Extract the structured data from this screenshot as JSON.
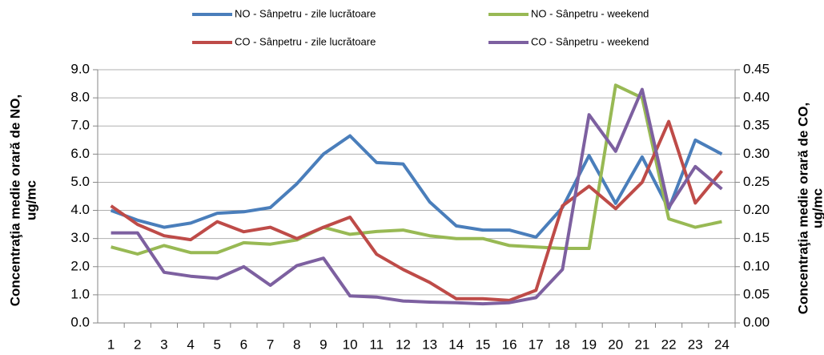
{
  "chart_data": {
    "type": "line",
    "categories": [
      "1",
      "2",
      "3",
      "4",
      "5",
      "6",
      "7",
      "8",
      "9",
      "10",
      "11",
      "12",
      "13",
      "14",
      "15",
      "16",
      "17",
      "18",
      "19",
      "20",
      "21",
      "22",
      "23",
      "24"
    ],
    "ylabel": [
      "Concentraţia medie orară de NO,",
      "ug/mc"
    ],
    "y2label": [
      "Concentraţia medie orară de CO,",
      "ug/mc"
    ],
    "ylim": [
      0,
      9
    ],
    "yticks": [
      {
        "value": 0,
        "label": "0.0"
      },
      {
        "value": 1,
        "label": "1.0"
      },
      {
        "value": 2,
        "label": "2.0"
      },
      {
        "value": 3,
        "label": "3.0"
      },
      {
        "value": 4,
        "label": "4.0"
      },
      {
        "value": 5,
        "label": "5.0"
      },
      {
        "value": 6,
        "label": "6.0"
      },
      {
        "value": 7,
        "label": "7.0"
      },
      {
        "value": 8,
        "label": "8.0"
      },
      {
        "value": 9,
        "label": "9.0"
      }
    ],
    "y2lim": [
      0,
      0.45
    ],
    "y2ticks": [
      {
        "value": 0,
        "label": "0.00"
      },
      {
        "value": 0.05,
        "label": "0.05"
      },
      {
        "value": 0.1,
        "label": "0.10"
      },
      {
        "value": 0.15,
        "label": "0.15"
      },
      {
        "value": 0.2,
        "label": "0.20"
      },
      {
        "value": 0.25,
        "label": "0.25"
      },
      {
        "value": 0.3,
        "label": "0.30"
      },
      {
        "value": 0.35,
        "label": "0.35"
      },
      {
        "value": 0.4,
        "label": "0.40"
      },
      {
        "value": 0.45,
        "label": "0.45"
      }
    ],
    "grid": true,
    "legend": "top",
    "series": [
      {
        "name": "NO - Sânpetru - zile lucrătoare",
        "color": "#4a7ebb",
        "axis": "y",
        "values": [
          4.0,
          3.65,
          3.4,
          3.55,
          3.9,
          3.95,
          4.1,
          4.95,
          6.0,
          6.65,
          5.7,
          5.65,
          4.3,
          3.45,
          3.3,
          3.3,
          3.05,
          4.1,
          5.95,
          4.25,
          5.9,
          4.05,
          6.5,
          6.0
        ]
      },
      {
        "name": "NO - Sânpetru - weekend",
        "color": "#98b954",
        "axis": "y",
        "values": [
          2.7,
          2.45,
          2.75,
          2.5,
          2.5,
          2.85,
          2.8,
          2.95,
          3.4,
          3.15,
          3.25,
          3.3,
          3.1,
          3.0,
          3.0,
          2.75,
          2.7,
          2.65,
          2.65,
          8.45,
          8.0,
          3.7,
          3.4,
          3.6
        ]
      },
      {
        "name": "CO - Sânpetru - zile lucrătoare",
        "color": "#be4b48",
        "axis": "y2",
        "values": [
          0.208,
          0.175,
          0.155,
          0.148,
          0.18,
          0.162,
          0.17,
          0.15,
          0.17,
          0.188,
          0.122,
          0.095,
          0.072,
          0.043,
          0.043,
          0.04,
          0.058,
          0.208,
          0.243,
          0.203,
          0.25,
          0.358,
          0.213,
          0.27
        ]
      },
      {
        "name": "CO - Sânpetru - weekend",
        "color": "#7d60a0",
        "axis": "y2",
        "values": [
          0.16,
          0.16,
          0.09,
          0.083,
          0.079,
          0.1,
          0.067,
          0.102,
          0.115,
          0.048,
          0.046,
          0.039,
          0.037,
          0.036,
          0.034,
          0.036,
          0.045,
          0.095,
          0.37,
          0.305,
          0.415,
          0.205,
          0.278,
          0.238
        ]
      }
    ]
  }
}
